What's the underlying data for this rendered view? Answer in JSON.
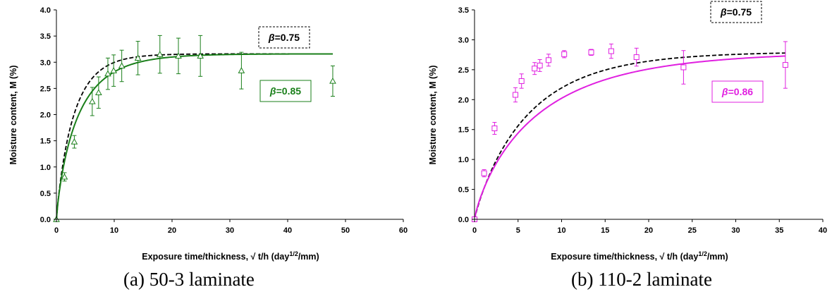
{
  "chart_data": [
    {
      "type": "scatter",
      "caption": "(a) 50-3 laminate",
      "xlabel_main": "Exposure time/thickness,  √ t/h (day",
      "xlabel_sup": "1/2",
      "xlabel_end": "/mm)",
      "ylabel": "Moisture content, M (%)",
      "xlim": [
        0,
        60
      ],
      "ylim": [
        0,
        4.0
      ],
      "xticks": [
        "0",
        "10",
        "20",
        "30",
        "40",
        "50",
        "60"
      ],
      "yticks": [
        "0.0",
        "0.5",
        "1.0",
        "1.5",
        "2.0",
        "2.5",
        "3.0",
        "3.5",
        "4.0"
      ],
      "xtick_values": [
        0,
        10,
        20,
        30,
        40,
        50,
        60
      ],
      "ytick_values": [
        0,
        0.5,
        1.0,
        1.5,
        2.0,
        2.5,
        3.0,
        3.5,
        4.0
      ],
      "marker": "triangle",
      "color": "#1a7f1a",
      "points": [
        {
          "x": 0,
          "y": 0,
          "err": 0
        },
        {
          "x": 1.4,
          "y": 0.81,
          "err": 0.08
        },
        {
          "x": 3.1,
          "y": 1.48,
          "err": 0.12
        },
        {
          "x": 6.2,
          "y": 2.25,
          "err": 0.27
        },
        {
          "x": 7.3,
          "y": 2.42,
          "err": 0.3
        },
        {
          "x": 8.9,
          "y": 2.78,
          "err": 0.3
        },
        {
          "x": 9.9,
          "y": 2.84,
          "err": 0.3
        },
        {
          "x": 11.3,
          "y": 2.93,
          "err": 0.3
        },
        {
          "x": 14.1,
          "y": 3.08,
          "err": 0.32
        },
        {
          "x": 17.9,
          "y": 3.15,
          "err": 0.36
        },
        {
          "x": 21.1,
          "y": 3.12,
          "err": 0.34
        },
        {
          "x": 24.9,
          "y": 3.12,
          "err": 0.39
        },
        {
          "x": 32.0,
          "y": 2.84,
          "err": 0.35
        },
        {
          "x": 47.8,
          "y": 2.64,
          "err": 0.29
        }
      ],
      "curves": [
        {
          "label": "β=0.75",
          "beta": 0.75,
          "m_inf": 3.16,
          "k": 0.33,
          "style": "dashed",
          "color": "#000000"
        },
        {
          "label": "β=0.85",
          "beta": 0.85,
          "m_inf": 3.16,
          "k": 0.26,
          "style": "solid",
          "color": "#1a7f1a"
        }
      ],
      "annotations": [
        {
          "text_beta": "β",
          "text_value": "=0.75",
          "color": "#000000",
          "border": "dashed"
        },
        {
          "text_beta": "β",
          "text_value": "=0.85",
          "color": "#1a7f1a",
          "border": "solid"
        }
      ]
    },
    {
      "type": "scatter",
      "caption": "(b) 110-2 laminate",
      "xlabel_main": "Exposure time/thickness,  √ t/h (day",
      "xlabel_sup": "1/2",
      "xlabel_end": "/mm)",
      "ylabel": "Moisture content, M (%)",
      "xlim": [
        0,
        40
      ],
      "ylim": [
        0,
        3.5
      ],
      "xticks": [
        "0",
        "5",
        "10",
        "15",
        "20",
        "25",
        "30",
        "35",
        "40"
      ],
      "yticks": [
        "0.0",
        "0.5",
        "1.0",
        "1.5",
        "2.0",
        "2.5",
        "3.0",
        "3.5"
      ],
      "xtick_values": [
        0,
        5,
        10,
        15,
        20,
        25,
        30,
        35,
        40
      ],
      "ytick_values": [
        0,
        0.5,
        1.0,
        1.5,
        2.0,
        2.5,
        3.0,
        3.5
      ],
      "marker": "square",
      "color": "#e020e0",
      "points": [
        {
          "x": 0,
          "y": 0,
          "err": 0
        },
        {
          "x": 1.1,
          "y": 0.77,
          "err": 0.06
        },
        {
          "x": 2.3,
          "y": 1.52,
          "err": 0.1
        },
        {
          "x": 4.7,
          "y": 2.08,
          "err": 0.12
        },
        {
          "x": 5.4,
          "y": 2.31,
          "err": 0.12
        },
        {
          "x": 6.9,
          "y": 2.52,
          "err": 0.1
        },
        {
          "x": 7.5,
          "y": 2.57,
          "err": 0.1
        },
        {
          "x": 8.5,
          "y": 2.66,
          "err": 0.1
        },
        {
          "x": 10.3,
          "y": 2.76,
          "err": 0.06
        },
        {
          "x": 13.4,
          "y": 2.79,
          "err": 0.05
        },
        {
          "x": 15.7,
          "y": 2.81,
          "err": 0.12
        },
        {
          "x": 18.6,
          "y": 2.71,
          "err": 0.15
        },
        {
          "x": 24.0,
          "y": 2.54,
          "err": 0.28
        },
        {
          "x": 35.7,
          "y": 2.58,
          "err": 0.39
        }
      ],
      "curves": [
        {
          "label": "β=0.75",
          "beta": 0.75,
          "m_inf": 2.8,
          "k": 0.16,
          "style": "dashed",
          "color": "#000000"
        },
        {
          "label": "β=0.86",
          "beta": 0.86,
          "m_inf": 2.8,
          "k": 0.135,
          "style": "solid",
          "color": "#e020e0"
        }
      ],
      "annotations": [
        {
          "text_beta": "β",
          "text_value": "=0.75",
          "color": "#000000",
          "border": "dashed"
        },
        {
          "text_beta": "β",
          "text_value": "=0.86",
          "color": "#e020e0",
          "border": "solid"
        }
      ]
    }
  ]
}
